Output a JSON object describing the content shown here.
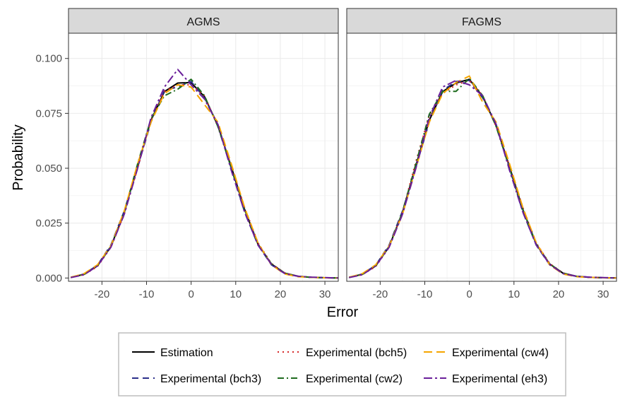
{
  "chart_data": {
    "type": "line",
    "xlabel": "Error",
    "ylabel": "Probability",
    "xlim": [
      -27.5,
      33
    ],
    "ylim": [
      -0.0015,
      0.1115
    ],
    "x_ticks": [
      -20,
      -10,
      0,
      10,
      20,
      30
    ],
    "x_tick_labels": [
      "-20",
      "-10",
      "0",
      "10",
      "20",
      "30"
    ],
    "y_ticks": [
      0.0,
      0.025,
      0.05,
      0.075,
      0.1
    ],
    "y_tick_labels": [
      "0.000",
      "0.025",
      "0.050",
      "0.075",
      "0.100"
    ],
    "grid": true,
    "legend_position": "bottom",
    "x": [
      -27,
      -24,
      -21,
      -18,
      -15,
      -12,
      -9,
      -6,
      -3,
      0,
      3,
      6,
      9,
      12,
      15,
      18,
      21,
      24,
      27,
      30,
      33
    ],
    "series_styles": [
      {
        "name": "Estimation",
        "color": "#000000",
        "dash": "",
        "width": 2
      },
      {
        "name": "Experimental (bch3)",
        "color": "#2b2f8a",
        "dash": "9,6",
        "width": 2
      },
      {
        "name": "Experimental (bch5)",
        "color": "#d62728",
        "dash": "2,5",
        "width": 2
      },
      {
        "name": "Experimental (cw2)",
        "color": "#1e6b1e",
        "dash": "9,4,2,4",
        "width": 2
      },
      {
        "name": "Experimental (cw4)",
        "color": "#f5a500",
        "dash": "12,6",
        "width": 2
      },
      {
        "name": "Experimental (eh3)",
        "color": "#6a1f9a",
        "dash": "12,4,3,4",
        "width": 2
      }
    ],
    "panels": [
      {
        "title": "AGMS",
        "series": [
          {
            "name": "Estimation",
            "values": [
              0.0003,
              0.0017,
              0.0055,
              0.0143,
              0.0298,
              0.0512,
              0.0718,
              0.0849,
              0.0888,
              0.089,
              0.0826,
              0.0694,
              0.0507,
              0.0312,
              0.0154,
              0.0064,
              0.0022,
              0.0008,
              0.0003,
              0.0001,
              0.0
            ]
          },
          {
            "name": "Experimental (bch3)",
            "values": [
              0.0002,
              0.0018,
              0.0058,
              0.015,
              0.0305,
              0.0505,
              0.071,
              0.0855,
              0.087,
              0.0895,
              0.082,
              0.07,
              0.05,
              0.03,
              0.015,
              0.006,
              0.002,
              0.0008,
              0.0003,
              0.0001,
              0.0
            ]
          },
          {
            "name": "Experimental (bch5)",
            "values": [
              0.0003,
              0.0016,
              0.0052,
              0.014,
              0.029,
              0.05,
              0.072,
              0.085,
              0.088,
              0.088,
              0.083,
              0.069,
              0.051,
              0.032,
              0.016,
              0.0066,
              0.0023,
              0.0008,
              0.0003,
              0.0001,
              0.0
            ]
          },
          {
            "name": "Experimental (cw2)",
            "values": [
              0.0003,
              0.0017,
              0.0056,
              0.0145,
              0.03,
              0.052,
              0.0725,
              0.083,
              0.086,
              0.0905,
              0.083,
              0.069,
              0.05,
              0.031,
              0.0155,
              0.0065,
              0.0022,
              0.0008,
              0.0003,
              0.0001,
              0.0
            ]
          },
          {
            "name": "Experimental (cw4)",
            "values": [
              0.0003,
              0.002,
              0.006,
              0.0146,
              0.0305,
              0.052,
              0.071,
              0.084,
              0.088,
              0.087,
              0.079,
              0.071,
              0.052,
              0.032,
              0.016,
              0.006,
              0.0018,
              0.0006,
              0.0003,
              0.0001,
              0.0
            ]
          },
          {
            "name": "Experimental (eh3)",
            "values": [
              0.0002,
              0.0015,
              0.0055,
              0.014,
              0.029,
              0.05,
              0.073,
              0.087,
              0.095,
              0.088,
              0.0815,
              0.07,
              0.049,
              0.03,
              0.015,
              0.0062,
              0.002,
              0.0008,
              0.0004,
              0.0002,
              0.0
            ]
          }
        ]
      },
      {
        "title": "FAGMS",
        "series": [
          {
            "name": "Estimation",
            "values": [
              0.0003,
              0.0017,
              0.0055,
              0.0143,
              0.0298,
              0.0512,
              0.0718,
              0.0849,
              0.0888,
              0.0905,
              0.0826,
              0.0694,
              0.0507,
              0.0312,
              0.0154,
              0.0064,
              0.0022,
              0.0008,
              0.0003,
              0.0001,
              0.0
            ]
          },
          {
            "name": "Experimental (bch3)",
            "values": [
              0.0002,
              0.0018,
              0.0058,
              0.015,
              0.0305,
              0.0505,
              0.071,
              0.0855,
              0.0895,
              0.09,
              0.082,
              0.07,
              0.05,
              0.03,
              0.015,
              0.006,
              0.002,
              0.0008,
              0.0003,
              0.0001,
              0.0
            ]
          },
          {
            "name": "Experimental (bch5)",
            "values": [
              0.0003,
              0.0016,
              0.0052,
              0.014,
              0.03,
              0.053,
              0.074,
              0.084,
              0.088,
              0.09,
              0.083,
              0.069,
              0.051,
              0.032,
              0.016,
              0.0066,
              0.0023,
              0.0008,
              0.0003,
              0.0001,
              0.0
            ]
          },
          {
            "name": "Experimental (cw2)",
            "values": [
              0.0003,
              0.0017,
              0.0056,
              0.0145,
              0.03,
              0.052,
              0.0745,
              0.085,
              0.085,
              0.091,
              0.083,
              0.069,
              0.05,
              0.031,
              0.0155,
              0.0065,
              0.0022,
              0.0008,
              0.0003,
              0.0001,
              0.0
            ]
          },
          {
            "name": "Experimental (cw4)",
            "values": [
              0.0003,
              0.002,
              0.006,
              0.0146,
              0.029,
              0.05,
              0.071,
              0.084,
              0.089,
              0.092,
              0.08,
              0.071,
              0.052,
              0.032,
              0.016,
              0.006,
              0.0018,
              0.0006,
              0.0003,
              0.0001,
              0.0
            ]
          },
          {
            "name": "Experimental (eh3)",
            "values": [
              0.0002,
              0.0015,
              0.0055,
              0.014,
              0.029,
              0.05,
              0.073,
              0.087,
              0.09,
              0.088,
              0.083,
              0.07,
              0.049,
              0.03,
              0.015,
              0.0062,
              0.002,
              0.0008,
              0.0004,
              0.0002,
              0.0
            ]
          }
        ]
      }
    ]
  }
}
